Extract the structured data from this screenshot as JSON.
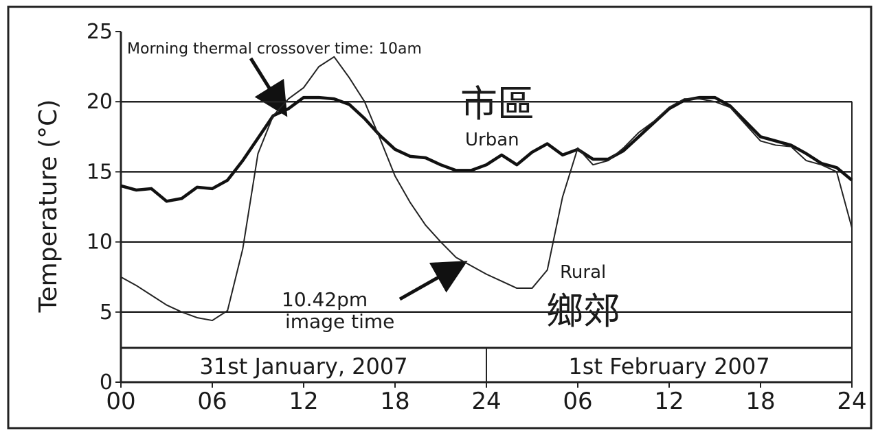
{
  "chart_data": {
    "type": "line",
    "y_label": "Temperature (°C)",
    "x": [
      0,
      1,
      2,
      3,
      4,
      5,
      6,
      7,
      8,
      9,
      10,
      11,
      12,
      13,
      14,
      15,
      16,
      17,
      18,
      19,
      20,
      21,
      22,
      23,
      24,
      25,
      26,
      27,
      28,
      29,
      30,
      31,
      32,
      33,
      34,
      35,
      36,
      37,
      38,
      39,
      40,
      41,
      42,
      43,
      44,
      45,
      46,
      47,
      48
    ],
    "series": [
      {
        "name": "Urban",
        "color": "#111111",
        "values": [
          14.0,
          13.7,
          13.8,
          12.9,
          13.1,
          13.9,
          13.8,
          14.4,
          15.8,
          17.4,
          19.0,
          19.5,
          20.3,
          20.3,
          20.2,
          19.8,
          18.8,
          17.6,
          16.6,
          16.1,
          16.0,
          15.5,
          15.1,
          15.1,
          15.5,
          16.2,
          15.5,
          16.4,
          17.0,
          16.2,
          16.6,
          15.9,
          15.9,
          16.5,
          17.5,
          18.5,
          19.5,
          20.1,
          20.3,
          20.3,
          19.7,
          18.6,
          17.5,
          17.2,
          16.9,
          16.3,
          15.6,
          15.3,
          14.4
        ]
      },
      {
        "name": "Rural",
        "color": "#222222",
        "values": [
          7.5,
          6.9,
          6.2,
          5.5,
          5.0,
          4.6,
          4.4,
          5.1,
          9.5,
          16.3,
          19.0,
          20.2,
          21.0,
          22.5,
          23.2,
          21.7,
          20.0,
          17.4,
          14.7,
          12.8,
          11.2,
          10.0,
          8.9,
          8.3,
          7.7,
          7.2,
          6.7,
          6.7,
          8.0,
          13.2,
          16.7,
          15.5,
          15.8,
          16.7,
          17.8,
          18.6,
          19.6,
          20.2,
          20.2,
          20.0,
          19.6,
          18.4,
          17.2,
          16.9,
          16.8,
          15.8,
          15.5,
          15.0,
          11.0
        ]
      }
    ],
    "xlim": [
      0,
      48
    ],
    "xticks": [
      {
        "value": 0,
        "label": "00"
      },
      {
        "value": 6,
        "label": "06"
      },
      12,
      18,
      24,
      {
        "value": 30,
        "label": "06"
      },
      {
        "value": 36,
        "label": "12"
      },
      {
        "value": 42,
        "label": "18"
      },
      {
        "value": 48,
        "label": "24"
      }
    ],
    "ylim": [
      0,
      25
    ],
    "yticks": [
      0,
      5,
      10,
      15,
      20,
      25
    ],
    "grid": true,
    "date_labels": [
      "31st January, 2007",
      "1st February 2007"
    ],
    "series_labels_zh": [
      "市區",
      "鄉郊"
    ],
    "annotations": [
      "Morning thermal crossover time: 10am",
      "10.42pm",
      "image time"
    ]
  }
}
